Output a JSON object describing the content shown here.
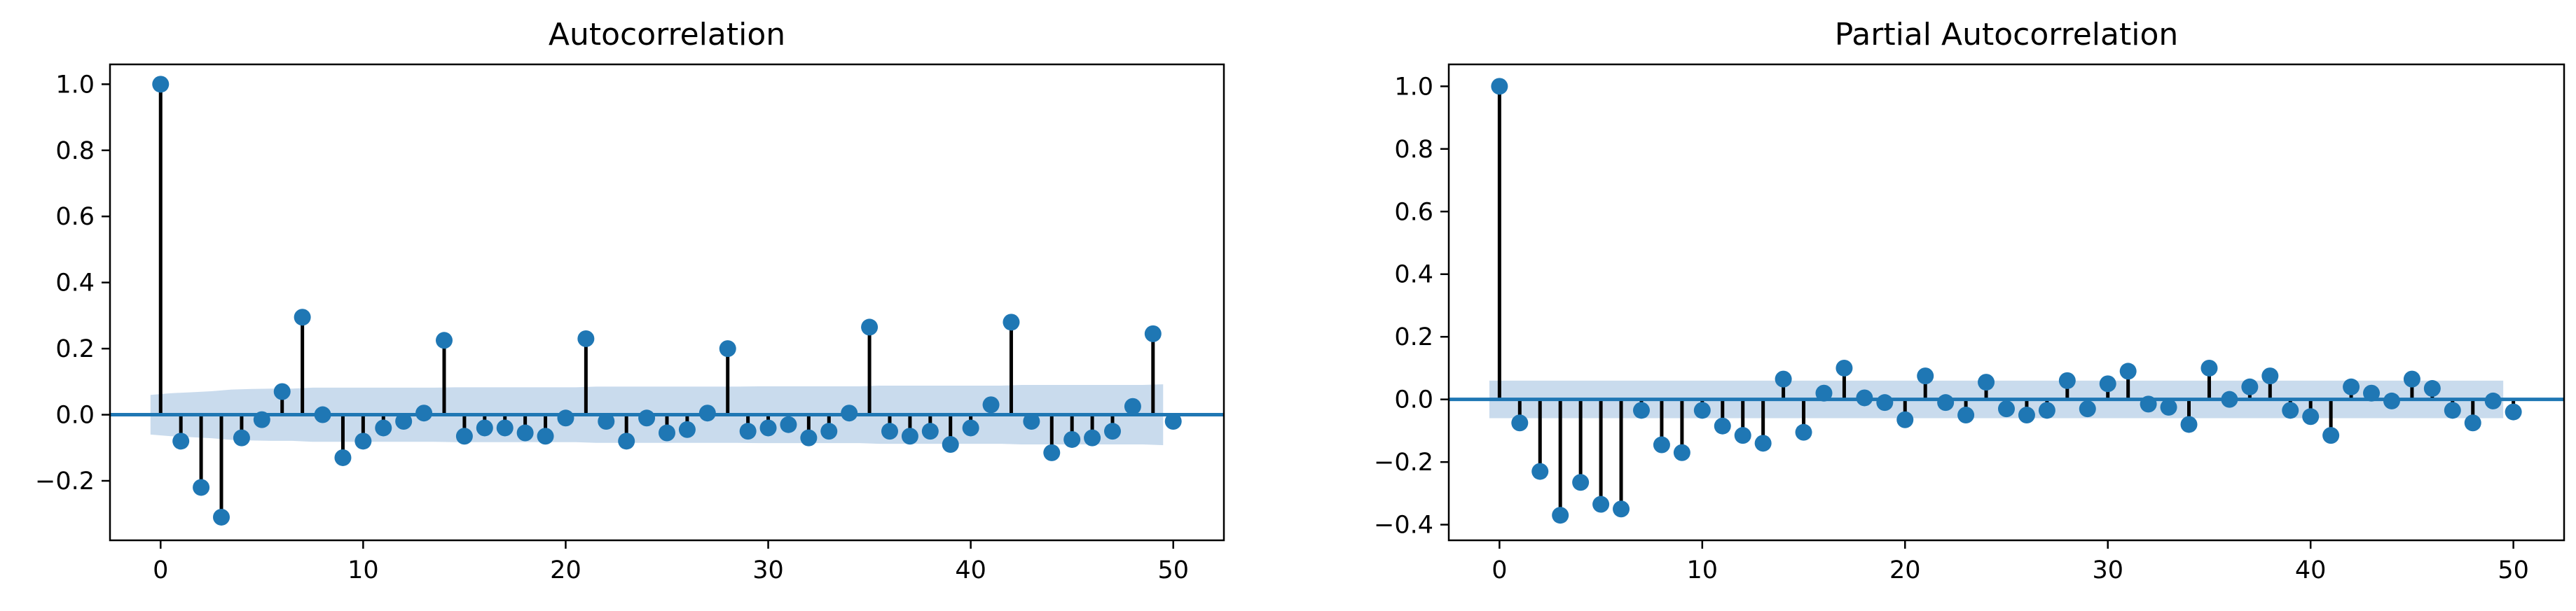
{
  "chart_data": [
    {
      "type": "stem",
      "title": "Autocorrelation",
      "xlabel": "",
      "ylabel": "",
      "xlim": [
        -2.5,
        52.5
      ],
      "ylim": [
        -0.38,
        1.06
      ],
      "xticks": [
        0,
        10,
        20,
        30,
        40,
        50
      ],
      "xtick_labels": [
        "0",
        "10",
        "20",
        "30",
        "40",
        "50"
      ],
      "yticks": [
        -0.2,
        0.0,
        0.2,
        0.4,
        0.6,
        0.8,
        1.0
      ],
      "ytick_labels": [
        "−0.2",
        "0.0",
        "0.2",
        "0.4",
        "0.6",
        "0.8",
        "1.0"
      ],
      "grid": false,
      "lags": [
        0,
        1,
        2,
        3,
        4,
        5,
        6,
        7,
        8,
        9,
        10,
        11,
        12,
        13,
        14,
        15,
        16,
        17,
        18,
        19,
        20,
        21,
        22,
        23,
        24,
        25,
        26,
        27,
        28,
        29,
        30,
        31,
        32,
        33,
        34,
        35,
        36,
        37,
        38,
        39,
        40,
        41,
        42,
        43,
        44,
        45,
        46,
        47,
        48,
        49,
        50
      ],
      "values": [
        1.0,
        -0.08,
        -0.22,
        -0.31,
        -0.07,
        -0.015,
        0.07,
        0.295,
        0.0,
        -0.13,
        -0.08,
        -0.04,
        -0.02,
        0.005,
        0.225,
        -0.065,
        -0.04,
        -0.04,
        -0.055,
        -0.065,
        -0.01,
        0.23,
        -0.02,
        -0.08,
        -0.01,
        -0.055,
        -0.045,
        0.005,
        0.2,
        -0.05,
        -0.04,
        -0.03,
        -0.07,
        -0.05,
        0.005,
        0.265,
        -0.05,
        -0.065,
        -0.05,
        -0.09,
        -0.04,
        0.03,
        0.28,
        -0.02,
        -0.115,
        -0.075,
        -0.07,
        -0.05,
        0.025,
        0.245,
        -0.02
      ],
      "confint_upper": [
        0.06,
        0.065,
        0.068,
        0.071,
        0.076,
        0.078,
        0.079,
        0.079,
        0.082,
        0.082,
        0.082,
        0.082,
        0.082,
        0.082,
        0.082,
        0.083,
        0.083,
        0.083,
        0.083,
        0.083,
        0.083,
        0.083,
        0.085,
        0.085,
        0.085,
        0.085,
        0.085,
        0.085,
        0.085,
        0.085,
        0.086,
        0.086,
        0.086,
        0.086,
        0.086,
        0.086,
        0.088,
        0.088,
        0.088,
        0.088,
        0.088,
        0.088,
        0.088,
        0.09,
        0.09,
        0.09,
        0.09,
        0.09,
        0.09,
        0.09,
        0.092
      ],
      "colors": {
        "marker": "#1f77b4",
        "stem": "#000000",
        "baseline": "#1f77b4",
        "band": "#c6d9ec"
      }
    },
    {
      "type": "stem",
      "title": "Partial Autocorrelation",
      "xlabel": "",
      "ylabel": "",
      "xlim": [
        -2.5,
        52.5
      ],
      "ylim": [
        -0.45,
        1.07
      ],
      "xticks": [
        0,
        10,
        20,
        30,
        40,
        50
      ],
      "xtick_labels": [
        "0",
        "10",
        "20",
        "30",
        "40",
        "50"
      ],
      "yticks": [
        -0.4,
        -0.2,
        0.0,
        0.2,
        0.4,
        0.6,
        0.8,
        1.0
      ],
      "ytick_labels": [
        "−0.4",
        "−0.2",
        "0.0",
        "0.2",
        "0.4",
        "0.6",
        "0.8",
        "1.0"
      ],
      "grid": false,
      "lags": [
        0,
        1,
        2,
        3,
        4,
        5,
        6,
        7,
        8,
        9,
        10,
        11,
        12,
        13,
        14,
        15,
        16,
        17,
        18,
        19,
        20,
        21,
        22,
        23,
        24,
        25,
        26,
        27,
        28,
        29,
        30,
        31,
        32,
        33,
        34,
        35,
        36,
        37,
        38,
        39,
        40,
        41,
        42,
        43,
        44,
        45,
        46,
        47,
        48,
        49,
        50
      ],
      "values": [
        1.0,
        -0.075,
        -0.23,
        -0.37,
        -0.265,
        -0.335,
        -0.35,
        -0.035,
        -0.145,
        -0.17,
        -0.035,
        -0.085,
        -0.115,
        -0.14,
        0.065,
        -0.105,
        0.02,
        0.1,
        0.005,
        -0.01,
        -0.065,
        0.075,
        -0.01,
        -0.05,
        0.055,
        -0.03,
        -0.05,
        -0.035,
        0.06,
        -0.03,
        0.05,
        0.09,
        -0.015,
        -0.025,
        -0.08,
        0.1,
        0.0,
        0.04,
        0.075,
        -0.035,
        -0.055,
        -0.115,
        0.04,
        0.02,
        -0.005,
        0.065,
        0.035,
        -0.035,
        -0.075,
        -0.005,
        -0.04
      ],
      "confint_upper": [
        0.06,
        0.06,
        0.06,
        0.06,
        0.06,
        0.06,
        0.06,
        0.06,
        0.06,
        0.06,
        0.06,
        0.06,
        0.06,
        0.06,
        0.06,
        0.06,
        0.06,
        0.06,
        0.06,
        0.06,
        0.06,
        0.06,
        0.06,
        0.06,
        0.06,
        0.06,
        0.06,
        0.06,
        0.06,
        0.06,
        0.06,
        0.06,
        0.06,
        0.06,
        0.06,
        0.06,
        0.06,
        0.06,
        0.06,
        0.06,
        0.06,
        0.06,
        0.06,
        0.06,
        0.06,
        0.06,
        0.06,
        0.06,
        0.06,
        0.06,
        0.06
      ],
      "colors": {
        "marker": "#1f77b4",
        "stem": "#000000",
        "baseline": "#1f77b4",
        "band": "#c6d9ec"
      }
    }
  ]
}
